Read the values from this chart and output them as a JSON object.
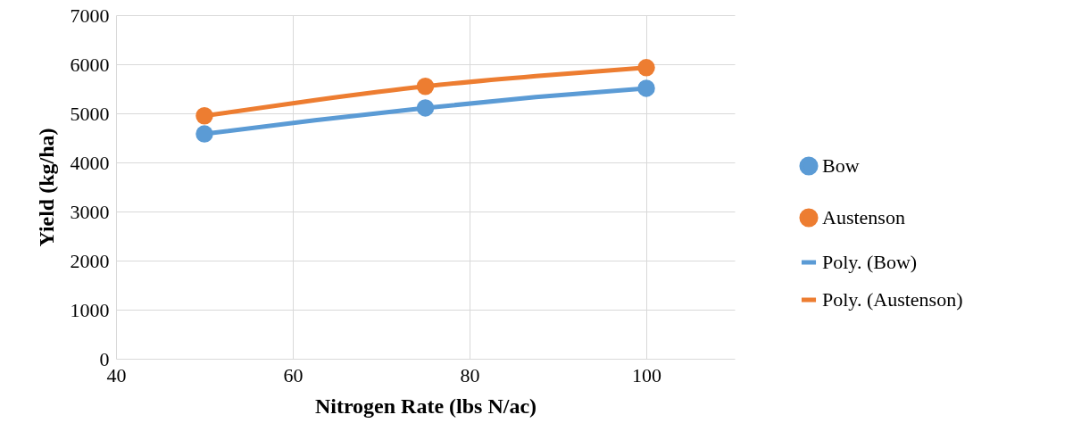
{
  "chart_data": {
    "type": "scatter",
    "xlabel": "Nitrogen Rate (lbs N/ac)",
    "ylabel": "Yield (kg/ha)",
    "xlim": [
      40,
      110
    ],
    "xticks": [
      40,
      60,
      80,
      100
    ],
    "ylim": [
      0,
      7000
    ],
    "yticks": [
      0,
      1000,
      2000,
      3000,
      4000,
      5000,
      6000,
      7000
    ],
    "grid": true,
    "legend": "right",
    "line_style": "solid",
    "series": [
      {
        "name": "Bow",
        "color": "#5b9bd5",
        "marker": "circle",
        "x": [
          50,
          75,
          100
        ],
        "values": [
          4580,
          5110,
          5510
        ]
      },
      {
        "name": "Austenson",
        "color": "#ed7d31",
        "marker": "circle",
        "x": [
          50,
          75,
          100
        ],
        "values": [
          4950,
          5550,
          5930
        ]
      },
      {
        "name": "Poly. (Bow)",
        "color": "#5b9bd5",
        "type": "line",
        "x": [
          50,
          62.5,
          75,
          87.5,
          100
        ],
        "values": [
          4580,
          4860,
          5110,
          5330,
          5510
        ]
      },
      {
        "name": "Poly. (Austenson)",
        "color": "#ed7d31",
        "type": "line",
        "x": [
          50,
          62.5,
          75,
          87.5,
          100
        ],
        "values": [
          4950,
          5270,
          5550,
          5760,
          5930
        ]
      }
    ]
  }
}
